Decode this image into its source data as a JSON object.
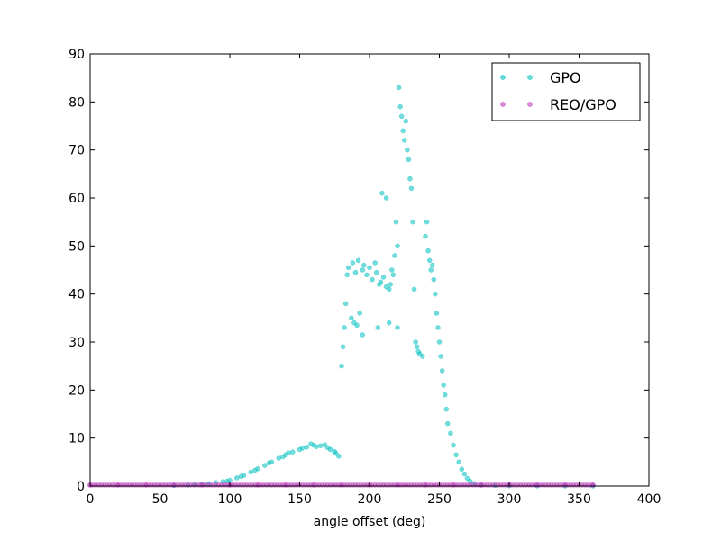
{
  "chart_data": {
    "type": "scatter",
    "xlabel": "angle offset (deg)",
    "ylabel": "",
    "xlim": [
      0,
      400
    ],
    "ylim": [
      0,
      90
    ],
    "xticks": [
      0,
      50,
      100,
      150,
      200,
      250,
      300,
      350,
      400
    ],
    "yticks": [
      0,
      10,
      20,
      30,
      40,
      50,
      60,
      70,
      80,
      90
    ],
    "grid": false,
    "legend_position": "top-right",
    "series": [
      {
        "name": "GPO",
        "color": "#00bfbf",
        "points": [
          [
            60,
            0.1
          ],
          [
            70,
            0.2
          ],
          [
            75,
            0.3
          ],
          [
            80,
            0.4
          ],
          [
            85,
            0.5
          ],
          [
            90,
            0.7
          ],
          [
            95,
            0.9
          ],
          [
            100,
            1.2
          ],
          [
            105,
            1.7
          ],
          [
            110,
            2.2
          ],
          [
            115,
            2.9
          ],
          [
            120,
            3.6
          ],
          [
            125,
            4.3
          ],
          [
            130,
            5.0
          ],
          [
            135,
            5.8
          ],
          [
            140,
            6.5
          ],
          [
            145,
            7.1
          ],
          [
            150,
            7.6
          ],
          [
            155,
            8.1
          ],
          [
            160,
            8.5
          ],
          [
            165,
            8.4
          ],
          [
            170,
            8.0
          ],
          [
            175,
            7.2
          ],
          [
            178,
            6.2
          ],
          [
            180,
            25.0
          ],
          [
            181,
            29.0
          ],
          [
            182,
            33.0
          ],
          [
            183,
            38.0
          ],
          [
            184,
            44.0
          ],
          [
            185,
            45.5
          ],
          [
            187,
            35.0
          ],
          [
            189,
            34.0
          ],
          [
            191,
            33.5
          ],
          [
            193,
            36.0
          ],
          [
            195,
            31.5
          ],
          [
            188,
            46.5
          ],
          [
            190,
            44.5
          ],
          [
            192,
            47.0
          ],
          [
            195,
            45.0
          ],
          [
            198,
            44.0
          ],
          [
            200,
            45.5
          ],
          [
            202,
            43.0
          ],
          [
            205,
            44.5
          ],
          [
            208,
            42.5
          ],
          [
            210,
            43.5
          ],
          [
            212,
            41.5
          ],
          [
            215,
            42.0
          ],
          [
            217,
            44.0
          ],
          [
            218,
            48.0
          ],
          [
            219,
            55.0
          ],
          [
            220,
            50.0
          ],
          [
            221,
            83.0
          ],
          [
            222,
            79.0
          ],
          [
            223,
            77.0
          ],
          [
            224,
            74.0
          ],
          [
            225,
            72.0
          ],
          [
            226,
            76.0
          ],
          [
            227,
            70.0
          ],
          [
            228,
            68.0
          ],
          [
            229,
            64.0
          ],
          [
            230,
            62.0
          ],
          [
            231,
            55.0
          ],
          [
            232,
            41.0
          ],
          [
            233,
            30.0
          ],
          [
            234,
            29.0
          ],
          [
            235,
            28.0
          ],
          [
            236,
            27.5
          ],
          [
            238,
            27.0
          ],
          [
            240,
            52.0
          ],
          [
            241,
            55.0
          ],
          [
            242,
            49.0
          ],
          [
            243,
            47.0
          ],
          [
            244,
            45.0
          ],
          [
            245,
            46.0
          ],
          [
            246,
            43.0
          ],
          [
            247,
            40.0
          ],
          [
            248,
            36.0
          ],
          [
            249,
            33.0
          ],
          [
            250,
            30.0
          ],
          [
            251,
            27.0
          ],
          [
            252,
            24.0
          ],
          [
            253,
            21.0
          ],
          [
            254,
            19.0
          ],
          [
            255,
            16.0
          ],
          [
            256,
            13.0
          ],
          [
            258,
            11.0
          ],
          [
            260,
            8.5
          ],
          [
            262,
            6.5
          ],
          [
            264,
            5.0
          ],
          [
            266,
            3.5
          ],
          [
            268,
            2.5
          ],
          [
            270,
            1.6
          ],
          [
            272,
            1.0
          ],
          [
            275,
            0.5
          ],
          [
            280,
            0.2
          ],
          [
            290,
            0.1
          ],
          [
            300,
            0.05
          ],
          [
            320,
            0.02
          ],
          [
            340,
            0.01
          ],
          [
            360,
            0.0
          ],
          [
            152,
            7.9
          ],
          [
            158,
            8.8
          ],
          [
            162,
            8.2
          ],
          [
            168,
            8.6
          ],
          [
            172,
            7.6
          ],
          [
            176,
            6.8
          ],
          [
            142,
            6.9
          ],
          [
            138,
            6.1
          ],
          [
            128,
            4.8
          ],
          [
            118,
            3.3
          ],
          [
            108,
            2.0
          ],
          [
            98,
            1.0
          ],
          [
            196,
            46.0
          ],
          [
            204,
            46.5
          ],
          [
            214,
            41.0
          ],
          [
            216,
            45.0
          ],
          [
            209,
            61.0
          ],
          [
            212,
            60.0
          ],
          [
            207,
            42.0
          ],
          [
            220,
            33.0
          ],
          [
            214,
            34.0
          ],
          [
            206,
            33.0
          ]
        ]
      },
      {
        "name": "REO/GPO",
        "color": "#bf40bf",
        "points": [
          [
            0,
            0.2
          ],
          [
            20,
            0.2
          ],
          [
            40,
            0.2
          ],
          [
            60,
            0.2
          ],
          [
            80,
            0.2
          ],
          [
            100,
            0.2
          ],
          [
            120,
            0.2
          ],
          [
            140,
            0.2
          ],
          [
            160,
            0.2
          ],
          [
            180,
            0.2
          ],
          [
            200,
            0.2
          ],
          [
            220,
            0.2
          ],
          [
            240,
            0.2
          ],
          [
            260,
            0.2
          ],
          [
            280,
            0.2
          ],
          [
            300,
            0.2
          ],
          [
            320,
            0.2
          ],
          [
            340,
            0.2
          ],
          [
            360,
            0.2
          ]
        ]
      }
    ]
  }
}
